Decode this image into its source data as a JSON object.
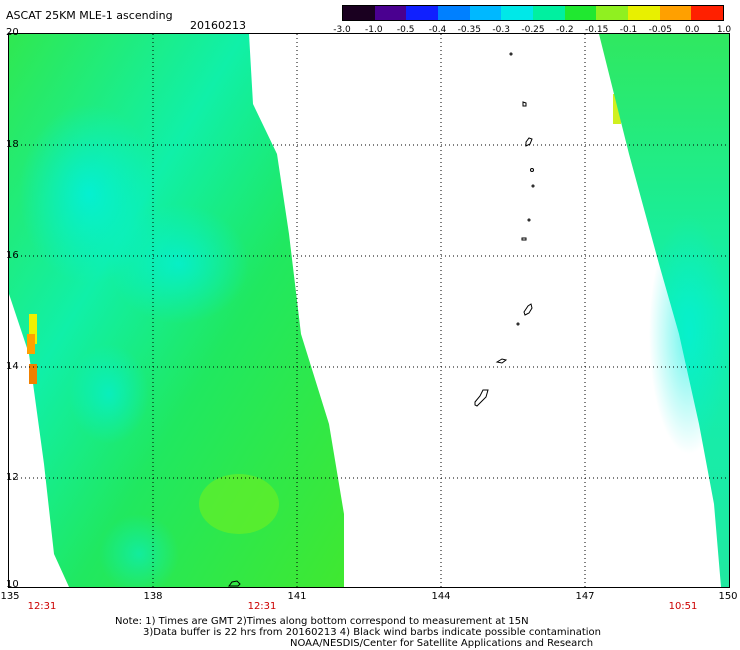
{
  "header": {
    "title": "ASCAT 25KM MLE-1 ascending",
    "date": "20160213"
  },
  "colorbar": {
    "labels": [
      "-3.0",
      "-1.0",
      "-0.5",
      "-0.4",
      "-0.35",
      "-0.3",
      "-0.25",
      "-0.2",
      "-0.15",
      "-0.1",
      "-0.05",
      "0.0",
      "1.0"
    ],
    "colors": [
      "#1a0020",
      "#4a0090",
      "#1020ff",
      "#0080ff",
      "#00b8ff",
      "#00e8e8",
      "#00f0a0",
      "#20e830",
      "#90f020",
      "#e8f000",
      "#ffa000",
      "#ff2000"
    ]
  },
  "axes": {
    "lat_labels": [
      "20",
      "18",
      "16",
      "14",
      "12",
      "10"
    ],
    "lon_labels": [
      "135",
      "138",
      "141",
      "144",
      "147",
      "150"
    ],
    "time_labels": [
      "12:31",
      "12:31",
      "10:51"
    ],
    "lat_range": [
      10,
      20
    ],
    "lon_range": [
      135,
      150
    ]
  },
  "note": {
    "line1": "Note: 1) Times are GMT 2)Times along bottom correspond to measurement at 15N",
    "line2": "3)Data buffer is 22 hrs from 20160213 4) Black wind barbs indicate possible contamination",
    "line3": "NOAA/NESDIS/Center for Satellite Applications and Research"
  }
}
